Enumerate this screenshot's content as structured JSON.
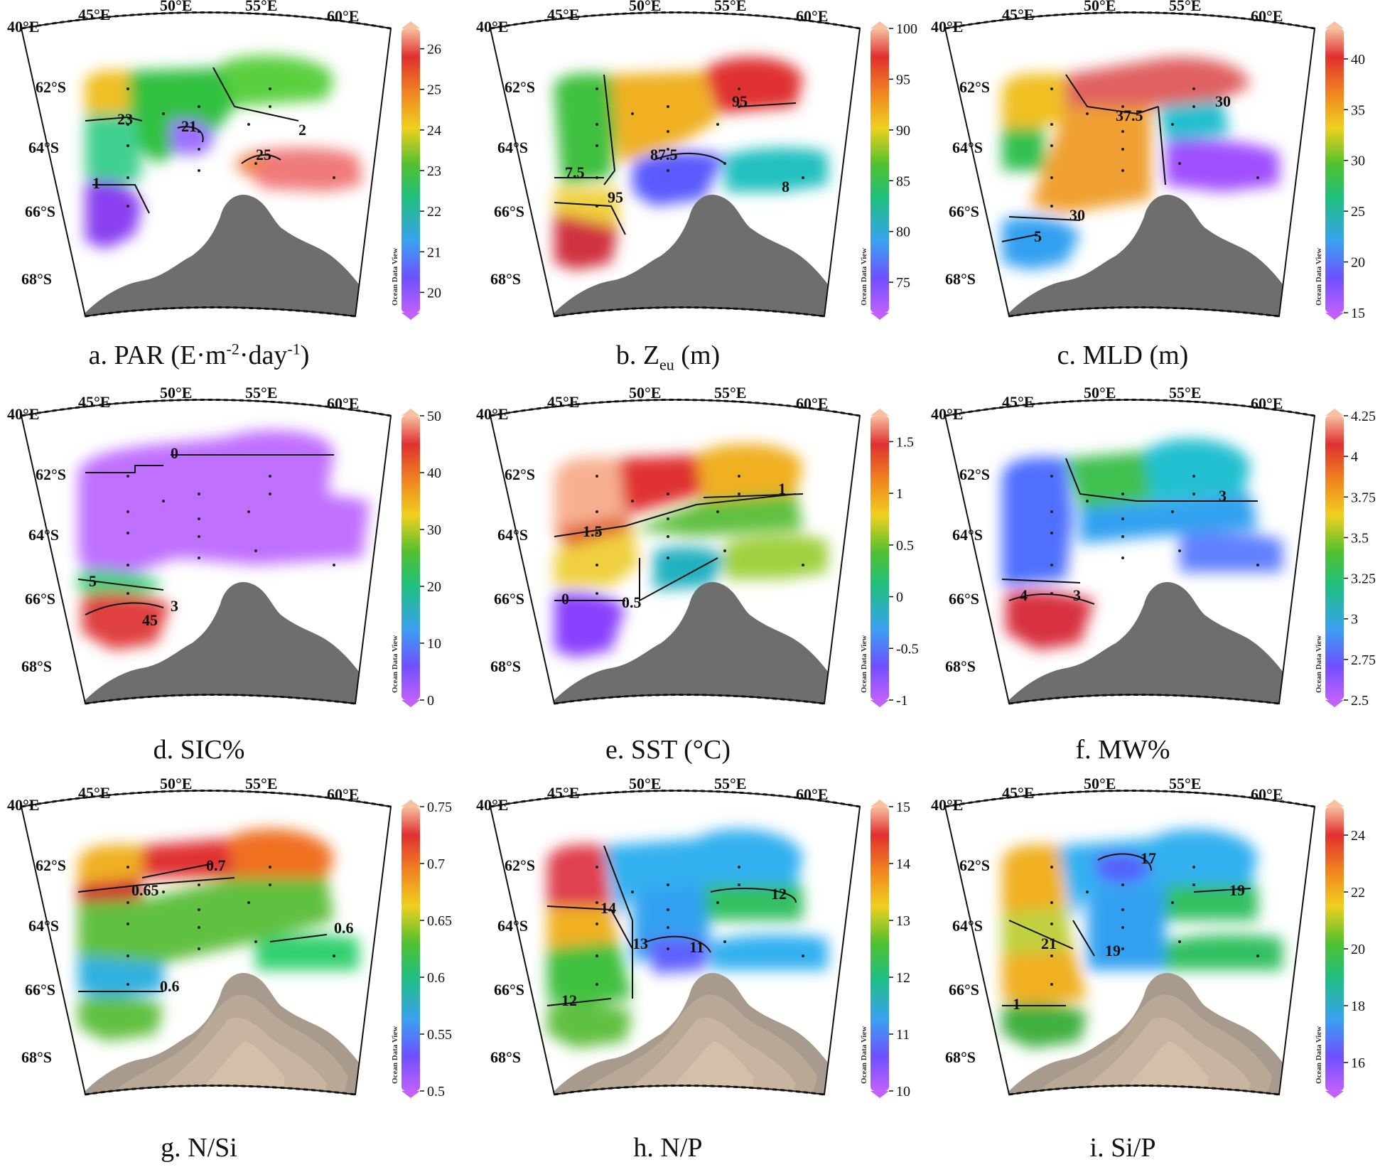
{
  "lon_labels": [
    "40°E",
    "45°E",
    "50°E",
    "55°E",
    "60°E"
  ],
  "lat_labels": [
    "62°S",
    "64°S",
    "66°S",
    "68°S"
  ],
  "colorbar_credit": "Ocean Data View",
  "colors": {
    "land_dark": "#6e6e6e",
    "land_bathy": [
      "#a89a8c",
      "#b8a896",
      "#c8b4a0",
      "#d4bfa8"
    ]
  },
  "panels": [
    {
      "id": "a",
      "caption": {
        "prefix": "a. PAR (E·m",
        "sup1": "-2",
        "mid": "·day",
        "sup2": "-1",
        "suffix": ")"
      },
      "colorbar": {
        "ticks": [
          "26",
          "25",
          "24",
          "23",
          "22",
          "21",
          "20"
        ],
        "min": 19.5,
        "max": 26.5
      },
      "contour_labels": [
        "23",
        "21",
        "25",
        "2",
        "1"
      ],
      "land": "dark"
    },
    {
      "id": "b",
      "caption": {
        "prefix": "b.  Z",
        "sub": "eu",
        "suffix": " (m)"
      },
      "colorbar": {
        "ticks": [
          "100",
          "95",
          "90",
          "85",
          "80",
          "75"
        ],
        "min": 72,
        "max": 100
      },
      "contour_labels": [
        "95",
        "87.5",
        "7.5",
        "95",
        "8"
      ],
      "land": "dark"
    },
    {
      "id": "c",
      "caption": {
        "prefix": "c. MLD (m)"
      },
      "colorbar": {
        "ticks": [
          "40",
          "35",
          "30",
          "25",
          "20",
          "15"
        ],
        "min": 15,
        "max": 43
      },
      "contour_labels": [
        "37.5",
        "30",
        "30",
        "5"
      ],
      "land": "dark"
    },
    {
      "id": "d",
      "caption": {
        "prefix": "d. SIC%"
      },
      "colorbar": {
        "ticks": [
          "50",
          "40",
          "30",
          "20",
          "10",
          "0"
        ],
        "min": 0,
        "max": 50
      },
      "contour_labels": [
        "0",
        "5",
        "45",
        "3"
      ],
      "land": "dark"
    },
    {
      "id": "e",
      "caption": {
        "prefix": "e. SST (°C)"
      },
      "colorbar": {
        "ticks": [
          "1.5",
          "1",
          "0.5",
          "0",
          "-0.5",
          "-1"
        ],
        "min": -1,
        "max": 1.75
      },
      "contour_labels": [
        "1",
        "1.5",
        "0.5",
        "0"
      ],
      "land": "dark"
    },
    {
      "id": "f",
      "caption": {
        "prefix": "f. MW%"
      },
      "colorbar": {
        "ticks": [
          "4.25",
          "4",
          "3.75",
          "3.5",
          "3.25",
          "3",
          "2.75",
          "2.5"
        ],
        "min": 2.5,
        "max": 4.25
      },
      "contour_labels": [
        "3",
        "4",
        "3"
      ],
      "land": "dark"
    },
    {
      "id": "g",
      "caption": {
        "prefix": "g. N/Si"
      },
      "colorbar": {
        "ticks": [
          "0.75",
          "0.7",
          "0.65",
          "0.6",
          "0.55",
          "0.5"
        ],
        "min": 0.5,
        "max": 0.75
      },
      "contour_labels": [
        "0.7",
        "0.65",
        "0.6",
        "0.6"
      ],
      "land": "bathy"
    },
    {
      "id": "h",
      "caption": {
        "prefix": "h. N/P"
      },
      "colorbar": {
        "ticks": [
          "15",
          "14",
          "13",
          "12",
          "11",
          "10"
        ],
        "min": 10,
        "max": 15
      },
      "contour_labels": [
        "14",
        "13",
        "11",
        "12",
        "12"
      ],
      "land": "bathy"
    },
    {
      "id": "i",
      "caption": {
        "prefix": "i. Si/P"
      },
      "colorbar": {
        "ticks": [
          "24",
          "22",
          "20",
          "18",
          "16"
        ],
        "min": 15,
        "max": 25
      },
      "contour_labels": [
        "17",
        "19",
        "21",
        "19",
        "1"
      ],
      "land": "bathy"
    }
  ]
}
